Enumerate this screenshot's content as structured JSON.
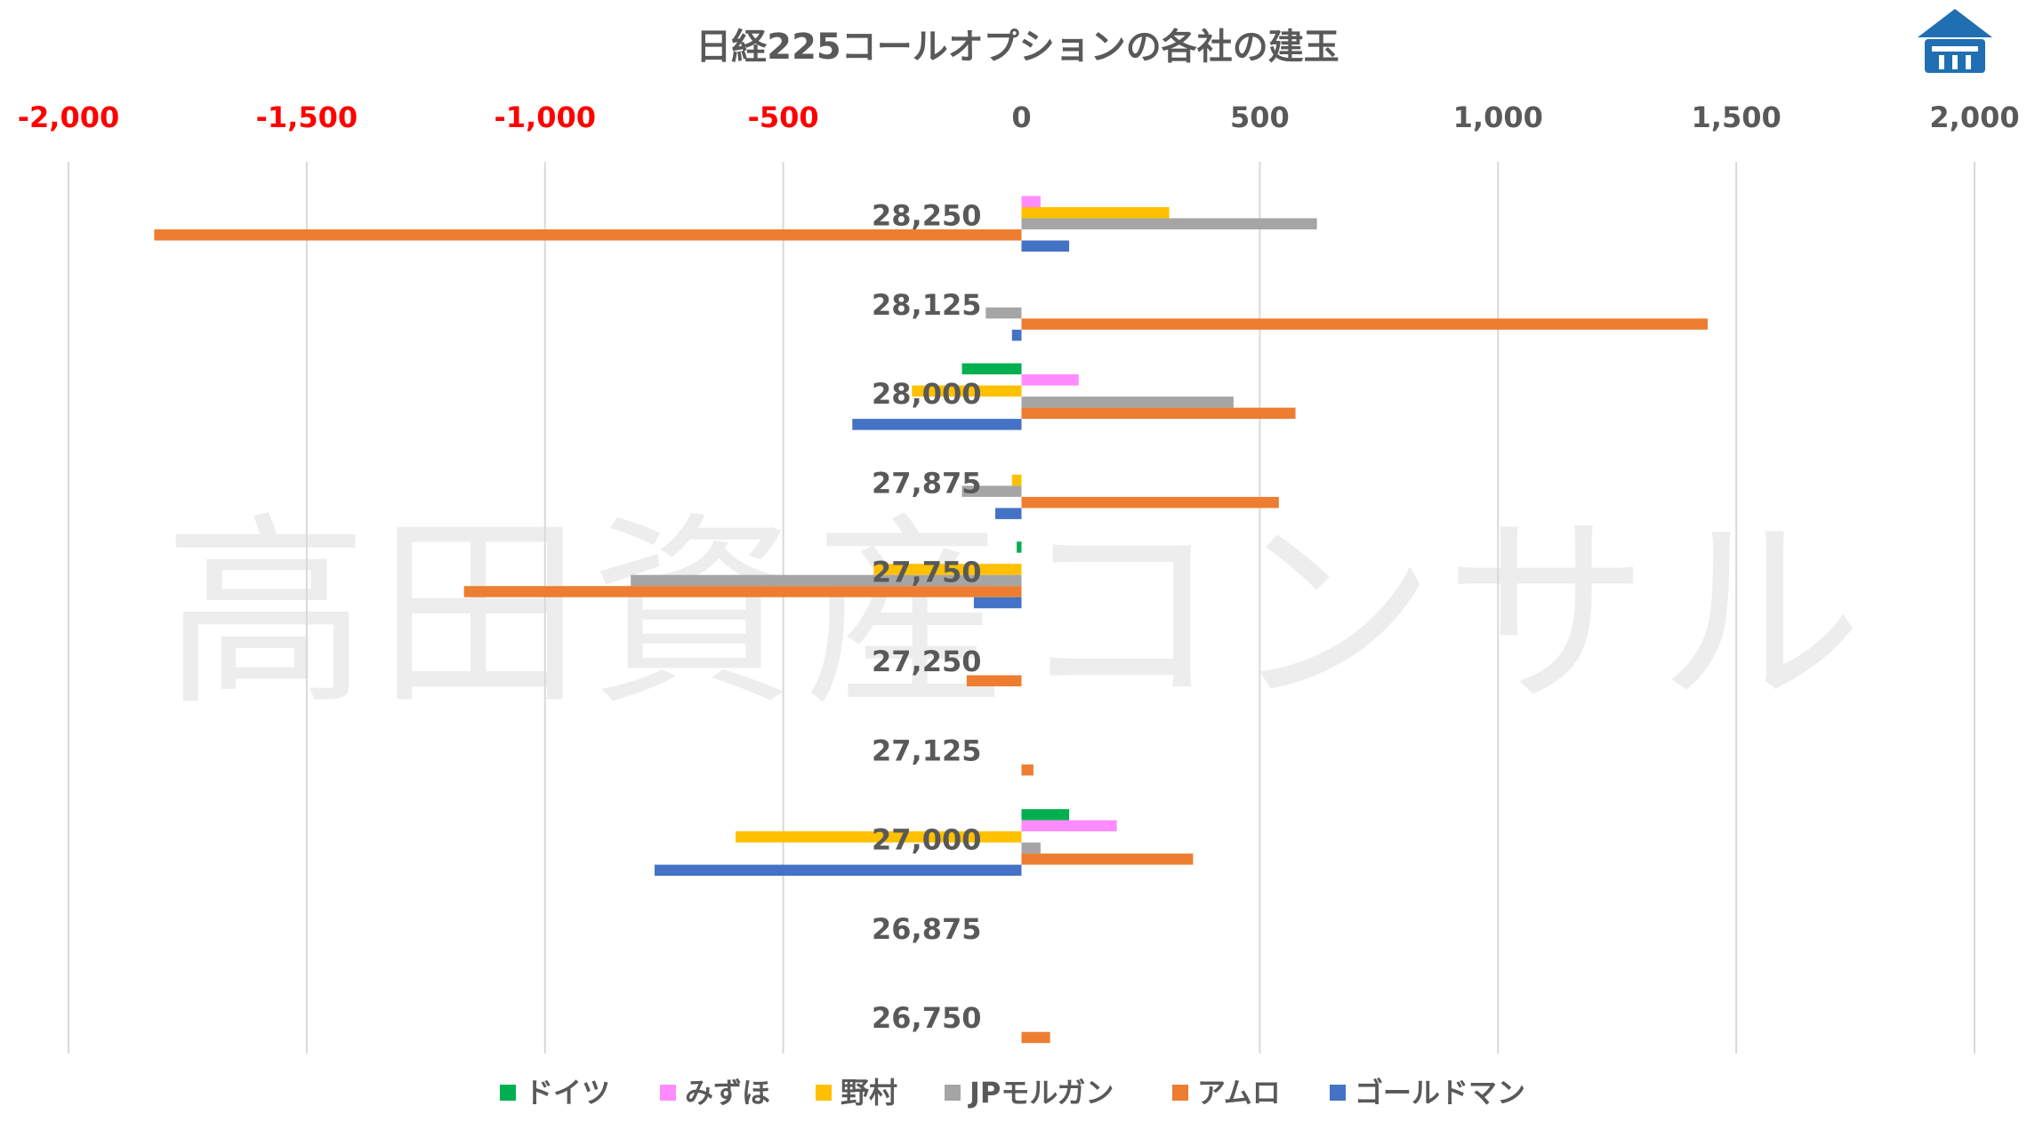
{
  "chart_data": {
    "type": "bar",
    "orientation": "horizontal",
    "title": "日経225コールオプションの各社の建玉",
    "watermark": "高田資産コンサル",
    "xlim": [
      -2000,
      2000
    ],
    "x_ticks": [
      -2000,
      -1500,
      -1000,
      -500,
      0,
      500,
      1000,
      1500,
      2000
    ],
    "x_tick_labels": [
      "-2,000",
      "-1,500",
      "-1,000",
      "-500",
      "0",
      "500",
      "1,000",
      "1,500",
      "2,000"
    ],
    "negative_tick_color": "#ff0000",
    "positive_tick_color": "#595959",
    "grid": true,
    "legend_position": "bottom",
    "categories": [
      "28,250",
      "28,125",
      "28,000",
      "27,875",
      "27,750",
      "27,250",
      "27,125",
      "27,000",
      "26,875",
      "26,750"
    ],
    "series": [
      {
        "name": "ドイツ",
        "color": "#00b050",
        "values": [
          0,
          0,
          -125,
          0,
          -10,
          0,
          0,
          100,
          0,
          0
        ]
      },
      {
        "name": "みずほ",
        "color": "#ff8bff",
        "values": [
          40,
          0,
          120,
          0,
          0,
          0,
          0,
          200,
          0,
          0
        ]
      },
      {
        "name": "野村",
        "color": "#ffc000",
        "values": [
          310,
          0,
          -230,
          -20,
          -310,
          0,
          0,
          -600,
          0,
          0
        ]
      },
      {
        "name": "JPモルガン",
        "color": "#a5a5a5",
        "values": [
          620,
          -75,
          445,
          -125,
          -820,
          0,
          0,
          40,
          0,
          0
        ]
      },
      {
        "name": "アムロ",
        "color": "#ed7d31",
        "values": [
          -1820,
          1440,
          575,
          540,
          -1170,
          -115,
          25,
          360,
          0,
          60
        ]
      },
      {
        "name": "ゴールドマン",
        "color": "#4472c4",
        "values": [
          100,
          -20,
          -355,
          -55,
          -100,
          0,
          0,
          -770,
          0,
          0
        ]
      }
    ]
  },
  "logo": {
    "name": "company-logo",
    "color": "#1f6fb2"
  }
}
